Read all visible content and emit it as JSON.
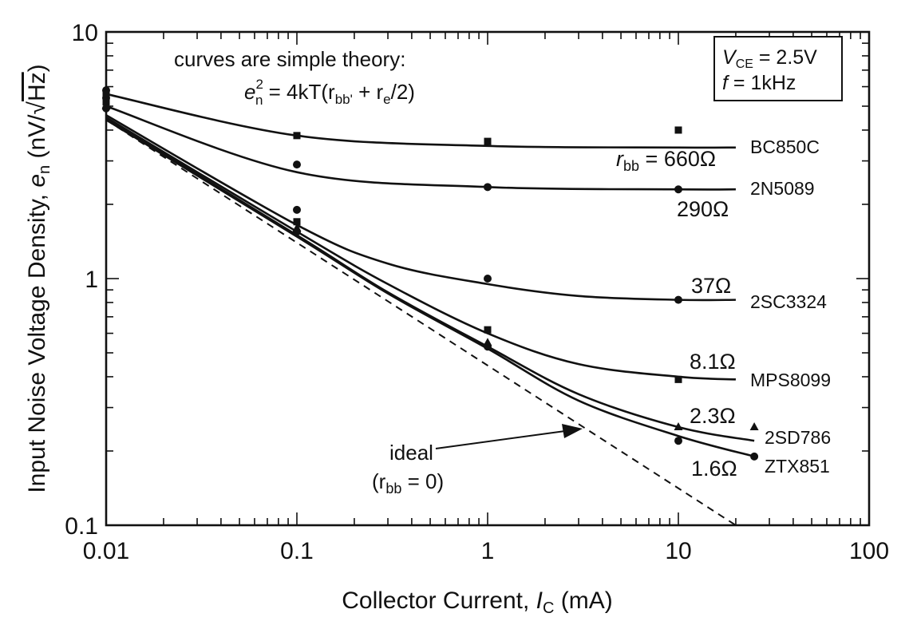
{
  "chart_data": {
    "type": "line",
    "title": "",
    "xlabel": {
      "main": "Collector Current, ",
      "var": "I",
      "sub": "C",
      "unit": " (mA)"
    },
    "ylabel": {
      "main": "Input Noise Voltage Density, ",
      "var": "e",
      "sub": "n",
      "unit_pre": " (nV/",
      "sqrt": "√",
      "sqrt_arg": "Hz",
      "unit_post": ")"
    },
    "x_scale": "log",
    "y_scale": "log",
    "xlim": [
      0.01,
      100
    ],
    "ylim": [
      0.1,
      10
    ],
    "x_ticks": [
      {
        "value": 0.01,
        "label": "0.01"
      },
      {
        "value": 0.1,
        "label": "0.1"
      },
      {
        "value": 1,
        "label": "1"
      },
      {
        "value": 10,
        "label": "10"
      },
      {
        "value": 100,
        "label": "100"
      }
    ],
    "y_ticks": [
      {
        "value": 0.1,
        "label": "0.1"
      },
      {
        "value": 1,
        "label": "1"
      },
      {
        "value": 10,
        "label": "10"
      }
    ],
    "grid": false,
    "annotations": {
      "theory_line1": "curves are simple theory:",
      "formula": {
        "e": "e",
        "sup": "2",
        "sub": "n",
        "mid": " = 4kT(r",
        "bb": "bb'",
        "plus": " + r",
        "e_sub": "e",
        "end": "/2)"
      },
      "conditions": {
        "vce_var": "V",
        "vce_sub": "CE",
        "vce_val": " = 2.5V",
        "f_var": "f",
        "f_val": " = 1kHz"
      },
      "ideal_label": "ideal",
      "ideal_rbb": {
        "open": "(r",
        "sub": "bb",
        "close": " = 0)"
      }
    },
    "series": [
      {
        "name": "BC850C",
        "rbb_label": "660Ω",
        "rbb_prefix": "r",
        "rbb_sub": "bb",
        "rbb_eq": " = ",
        "x": [
          0.01,
          0.1,
          1,
          10,
          20
        ],
        "y": [
          5.6,
          3.8,
          3.45,
          3.4,
          3.4
        ],
        "points": [
          {
            "x": 0.01,
            "y": 5.2
          },
          {
            "x": 0.1,
            "y": 3.8
          },
          {
            "x": 1,
            "y": 3.6
          },
          {
            "x": 10,
            "y": 4.0
          }
        ],
        "marker": "square"
      },
      {
        "name": "2N5089",
        "rbb_label": "290Ω",
        "x": [
          0.01,
          0.1,
          1,
          10,
          20
        ],
        "y": [
          5.0,
          2.7,
          2.35,
          2.3,
          2.3
        ],
        "points": [
          {
            "x": 0.01,
            "y": 5.4
          },
          {
            "x": 0.1,
            "y": 2.9
          },
          {
            "x": 1,
            "y": 2.35
          },
          {
            "x": 10,
            "y": 2.3
          }
        ],
        "marker": "circle"
      },
      {
        "name": "2SC3324",
        "rbb_label": "37Ω",
        "x": [
          0.01,
          0.1,
          0.3,
          1,
          3,
          10,
          20
        ],
        "y": [
          4.6,
          1.65,
          1.15,
          0.95,
          0.85,
          0.82,
          0.82
        ],
        "points": [
          {
            "x": 0.01,
            "y": 5.8
          },
          {
            "x": 0.1,
            "y": 1.9
          },
          {
            "x": 1,
            "y": 1.0
          },
          {
            "x": 10,
            "y": 0.82
          }
        ],
        "marker": "circle"
      },
      {
        "name": "MPS8099",
        "rbb_label": "8.1Ω",
        "x": [
          0.01,
          0.1,
          0.3,
          1,
          3,
          10,
          20
        ],
        "y": [
          4.5,
          1.55,
          0.95,
          0.6,
          0.45,
          0.4,
          0.39
        ],
        "points": [
          {
            "x": 0.01,
            "y": 5.6
          },
          {
            "x": 0.1,
            "y": 1.7
          },
          {
            "x": 1,
            "y": 0.62
          },
          {
            "x": 10,
            "y": 0.39
          }
        ],
        "marker": "square"
      },
      {
        "name": "2SD786",
        "rbb_label": "2.3Ω",
        "x": [
          0.01,
          0.1,
          0.3,
          1,
          3,
          10,
          25
        ],
        "y": [
          4.45,
          1.5,
          0.88,
          0.53,
          0.34,
          0.25,
          0.22
        ],
        "points": [
          {
            "x": 0.01,
            "y": 5.0
          },
          {
            "x": 0.1,
            "y": 1.6
          },
          {
            "x": 1,
            "y": 0.55
          },
          {
            "x": 10,
            "y": 0.25
          },
          {
            "x": 25,
            "y": 0.25
          }
        ],
        "marker": "triangle"
      },
      {
        "name": "ZTX851",
        "rbb_label": "1.6Ω",
        "x": [
          0.01,
          0.1,
          0.3,
          1,
          3,
          10,
          25
        ],
        "y": [
          4.4,
          1.48,
          0.87,
          0.52,
          0.32,
          0.23,
          0.19
        ],
        "points": [
          {
            "x": 0.01,
            "y": 4.9
          },
          {
            "x": 0.1,
            "y": 1.55
          },
          {
            "x": 1,
            "y": 0.53
          },
          {
            "x": 10,
            "y": 0.22
          },
          {
            "x": 25,
            "y": 0.19
          }
        ],
        "marker": "circle"
      }
    ],
    "ideal": {
      "x": [
        0.01,
        20
      ],
      "y": [
        4.4,
        0.1
      ]
    }
  }
}
